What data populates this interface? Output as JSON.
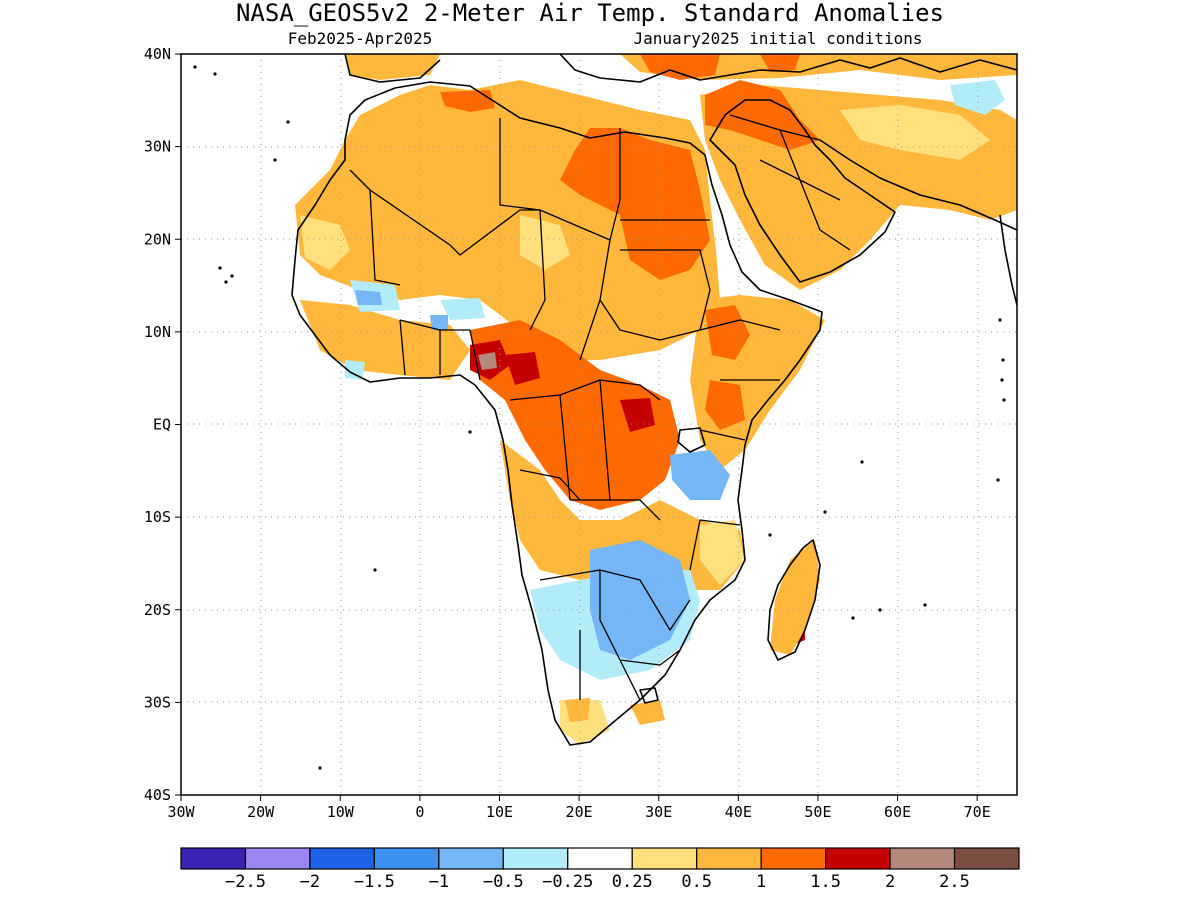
{
  "header": {
    "title": "NASA_GEOS5v2 2-Meter Air Temp. Standard Anomalies",
    "period": "Feb2025-Apr2025",
    "init": "January2025 initial conditions"
  },
  "map": {
    "lon_range": [
      -30,
      75
    ],
    "lat_range": [
      -40,
      40
    ],
    "grid": "dotted",
    "lon_ticks": [
      {
        "value": -30,
        "label": "30W"
      },
      {
        "value": -20,
        "label": "20W"
      },
      {
        "value": -10,
        "label": "10W"
      },
      {
        "value": 0,
        "label": "0"
      },
      {
        "value": 10,
        "label": "10E"
      },
      {
        "value": 20,
        "label": "20E"
      },
      {
        "value": 30,
        "label": "30E"
      },
      {
        "value": 40,
        "label": "40E"
      },
      {
        "value": 50,
        "label": "50E"
      },
      {
        "value": 60,
        "label": "60E"
      },
      {
        "value": 70,
        "label": "70E"
      }
    ],
    "lat_ticks": [
      {
        "value": 40,
        "label": "40N"
      },
      {
        "value": 30,
        "label": "30N"
      },
      {
        "value": 20,
        "label": "20N"
      },
      {
        "value": 10,
        "label": "10N"
      },
      {
        "value": 0,
        "label": "EQ"
      },
      {
        "value": -10,
        "label": "10S"
      },
      {
        "value": -20,
        "label": "20S"
      },
      {
        "value": -30,
        "label": "30S"
      },
      {
        "value": -40,
        "label": "40S"
      }
    ]
  },
  "legend": {
    "colors": [
      "#3b23b3",
      "#9b86f2",
      "#1f62e8",
      "#3c91f0",
      "#74b6f6",
      "#b2ecf8",
      "#ffffff",
      "#ffe07c",
      "#ffb73c",
      "#ff6a00",
      "#c40000",
      "#b58a7c",
      "#7a4e40"
    ],
    "labels": [
      "-2.5",
      "-2",
      "-1.5",
      "-1",
      "-0.5",
      "-0.25",
      "0.25",
      "0.5",
      "1",
      "1.5",
      "2",
      "2.5"
    ]
  },
  "colors": {
    "frame": "#000000",
    "grid": "#9a9a9a"
  }
}
